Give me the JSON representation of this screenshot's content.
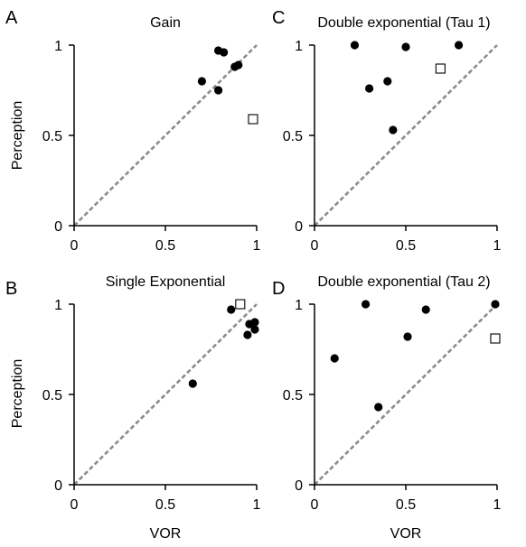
{
  "chart_data": [
    {
      "panel": "A",
      "type": "scatter",
      "title": "Gain",
      "xlabel": "",
      "ylabel": "Perception",
      "xlim": [
        0,
        1
      ],
      "ylim": [
        0,
        1
      ],
      "xticks": [
        "0",
        "0.5",
        "1"
      ],
      "yticks": [
        "0",
        "0.5",
        "1"
      ],
      "unity_line": true,
      "series": [
        {
          "marker": "filled-circle",
          "points": [
            [
              0.7,
              0.8
            ],
            [
              0.79,
              0.97
            ],
            [
              0.82,
              0.96
            ],
            [
              0.79,
              0.75
            ],
            [
              0.88,
              0.88
            ],
            [
              0.9,
              0.89
            ]
          ]
        },
        {
          "marker": "open-square",
          "points": [
            [
              0.98,
              0.59
            ]
          ]
        }
      ]
    },
    {
      "panel": "C",
      "type": "scatter",
      "title": "Double exponential (Tau 1)",
      "xlabel": "",
      "ylabel": "",
      "xlim": [
        0,
        1
      ],
      "ylim": [
        0,
        1
      ],
      "xticks": [
        "0",
        "0.5",
        "1"
      ],
      "yticks": [
        "0",
        "0.5",
        "1"
      ],
      "unity_line": true,
      "series": [
        {
          "marker": "filled-circle",
          "points": [
            [
              0.22,
              1.0
            ],
            [
              0.5,
              0.99
            ],
            [
              0.79,
              1.0
            ],
            [
              0.3,
              0.76
            ],
            [
              0.4,
              0.8
            ],
            [
              0.43,
              0.53
            ]
          ]
        },
        {
          "marker": "open-square",
          "points": [
            [
              0.69,
              0.87
            ]
          ]
        }
      ]
    },
    {
      "panel": "B",
      "type": "scatter",
      "title": "Single Exponential",
      "xlabel": "VOR",
      "ylabel": "Perception",
      "xlim": [
        0,
        1
      ],
      "ylim": [
        0,
        1
      ],
      "xticks": [
        "0",
        "0.5",
        "1"
      ],
      "yticks": [
        "0",
        "0.5",
        "1"
      ],
      "unity_line": true,
      "series": [
        {
          "marker": "filled-circle",
          "points": [
            [
              0.86,
              0.97
            ],
            [
              0.96,
              0.89
            ],
            [
              0.99,
              0.9
            ],
            [
              0.95,
              0.83
            ],
            [
              0.99,
              0.86
            ],
            [
              0.65,
              0.56
            ]
          ]
        },
        {
          "marker": "open-square",
          "points": [
            [
              0.91,
              1.0
            ]
          ]
        }
      ]
    },
    {
      "panel": "D",
      "type": "scatter",
      "title": "Double exponential (Tau 2)",
      "xlabel": "VOR",
      "ylabel": "",
      "xlim": [
        0,
        1
      ],
      "ylim": [
        0,
        1
      ],
      "xticks": [
        "0",
        "0.5",
        "1"
      ],
      "yticks": [
        "0",
        "0.5",
        "1"
      ],
      "unity_line": true,
      "series": [
        {
          "marker": "filled-circle",
          "points": [
            [
              0.28,
              1.0
            ],
            [
              0.99,
              1.0
            ],
            [
              0.61,
              0.97
            ],
            [
              0.51,
              0.82
            ],
            [
              0.11,
              0.7
            ],
            [
              0.35,
              0.43
            ]
          ]
        },
        {
          "marker": "open-square",
          "points": [
            [
              0.99,
              0.81
            ]
          ]
        }
      ]
    }
  ],
  "colors": {
    "axes": "#000000",
    "unity_line": "#8c8c8c",
    "points": "#000000",
    "square_fill": "#ffffff"
  }
}
